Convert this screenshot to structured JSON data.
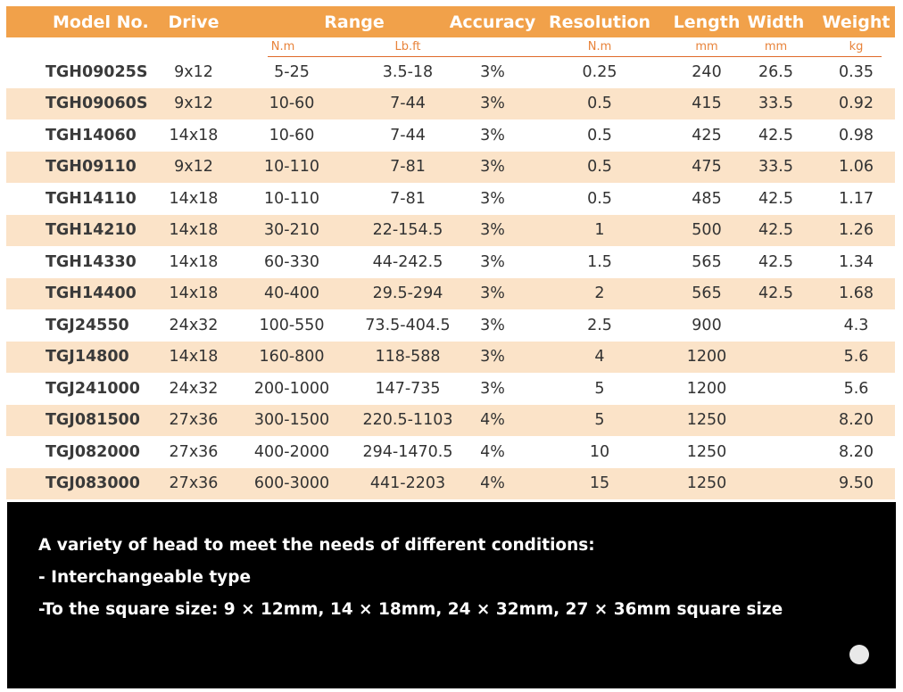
{
  "table": {
    "headers": {
      "model": "Model No.",
      "drive": "Drive",
      "range": "Range",
      "accuracy": "Accuracy",
      "resolution": "Resolution",
      "length": "Length",
      "width": "Width",
      "weight": "Weight"
    },
    "units": {
      "range_nm": "N.m",
      "range_lb": "Lb.ft",
      "resolution": "N.m",
      "length": "mm",
      "width": "mm",
      "weight": "kg"
    },
    "rows": [
      {
        "model": "TGH09025S",
        "drive": "9x12",
        "nm": "5-25",
        "lb": "3.5-18",
        "accuracy": "3%",
        "resolution": "0.25",
        "length": "240",
        "width": "26.5",
        "weight": "0.35"
      },
      {
        "model": "TGH09060S",
        "drive": "9x12",
        "nm": "10-60",
        "lb": "7-44",
        "accuracy": "3%",
        "resolution": "0.5",
        "length": "415",
        "width": "33.5",
        "weight": "0.92"
      },
      {
        "model": "TGH14060",
        "drive": "14x18",
        "nm": "10-60",
        "lb": "7-44",
        "accuracy": "3%",
        "resolution": "0.5",
        "length": "425",
        "width": "42.5",
        "weight": "0.98"
      },
      {
        "model": "TGH09110",
        "drive": "9x12",
        "nm": "10-110",
        "lb": "7-81",
        "accuracy": "3%",
        "resolution": "0.5",
        "length": "475",
        "width": "33.5",
        "weight": "1.06"
      },
      {
        "model": "TGH14110",
        "drive": "14x18",
        "nm": "10-110",
        "lb": "7-81",
        "accuracy": "3%",
        "resolution": "0.5",
        "length": "485",
        "width": "42.5",
        "weight": "1.17"
      },
      {
        "model": "TGH14210",
        "drive": "14x18",
        "nm": "30-210",
        "lb": "22-154.5",
        "accuracy": "3%",
        "resolution": "1",
        "length": "500",
        "width": "42.5",
        "weight": "1.26"
      },
      {
        "model": "TGH14330",
        "drive": "14x18",
        "nm": "60-330",
        "lb": "44-242.5",
        "accuracy": "3%",
        "resolution": "1.5",
        "length": "565",
        "width": "42.5",
        "weight": "1.34"
      },
      {
        "model": "TGH14400",
        "drive": "14x18",
        "nm": "40-400",
        "lb": "29.5-294",
        "accuracy": "3%",
        "resolution": "2",
        "length": "565",
        "width": "42.5",
        "weight": "1.68"
      },
      {
        "model": "TGJ24550",
        "drive": "24x32",
        "nm": "100-550",
        "lb": "73.5-404.5",
        "accuracy": "3%",
        "resolution": "2.5",
        "length": "900",
        "width": "",
        "weight": "4.3"
      },
      {
        "model": "TGJ14800",
        "drive": "14x18",
        "nm": "160-800",
        "lb": "118-588",
        "accuracy": "3%",
        "resolution": "4",
        "length": "1200",
        "width": "",
        "weight": "5.6"
      },
      {
        "model": "TGJ241000",
        "drive": "24x32",
        "nm": "200-1000",
        "lb": "147-735",
        "accuracy": "3%",
        "resolution": "5",
        "length": "1200",
        "width": "",
        "weight": "5.6"
      },
      {
        "model": "TGJ081500",
        "drive": "27x36",
        "nm": "300-1500",
        "lb": "220.5-1103",
        "accuracy": "4%",
        "resolution": "5",
        "length": "1250",
        "width": "",
        "weight": "8.20"
      },
      {
        "model": "TGJ082000",
        "drive": "27x36",
        "nm": "400-2000",
        "lb": "294-1470.5",
        "accuracy": "4%",
        "resolution": "10",
        "length": "1250",
        "width": "",
        "weight": "8.20"
      },
      {
        "model": "TGJ083000",
        "drive": "27x36",
        "nm": "600-3000",
        "lb": "441-2203",
        "accuracy": "4%",
        "resolution": "15",
        "length": "1250",
        "width": "",
        "weight": "9.50"
      }
    ]
  },
  "info": {
    "line1": "A variety of head to meet the needs of different conditions:",
    "line2": "- Interchangeable type",
    "line3": "-To the square size: 9 × 12mm, 14 × 18mm, 24 × 32mm, 27 × 36mm square size"
  },
  "colors": {
    "header_bg": "#f1a14a",
    "alt_row_bg": "#fbe3c8",
    "units_text": "#e8833a",
    "info_bg": "#000000"
  }
}
